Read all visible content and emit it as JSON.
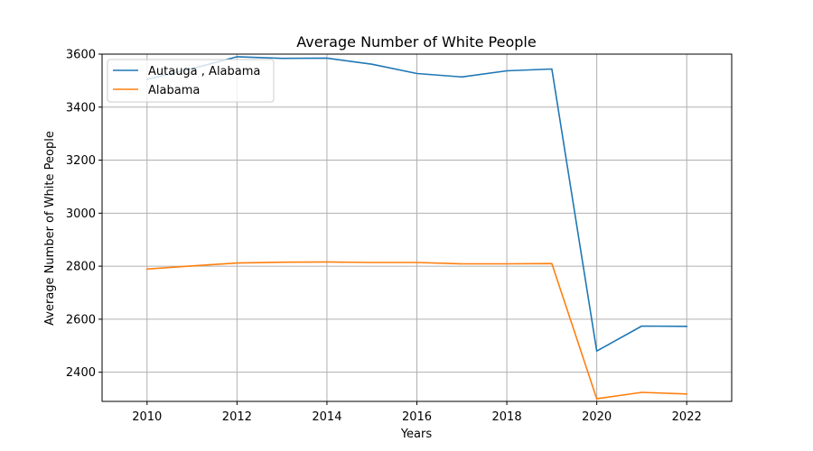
{
  "chart_data": {
    "type": "line",
    "title": "Average Number of White People",
    "xlabel": "Years",
    "ylabel": "Average Number of White People",
    "xlim": [
      2009,
      2023
    ],
    "ylim": [
      2290,
      3600
    ],
    "xticks": [
      2010,
      2012,
      2014,
      2016,
      2018,
      2020,
      2022
    ],
    "yticks": [
      2400,
      2600,
      2800,
      3000,
      3200,
      3400,
      3600
    ],
    "grid": true,
    "legend_position": "top-left",
    "x": [
      2010,
      2011,
      2012,
      2013,
      2014,
      2015,
      2016,
      2017,
      2018,
      2019,
      2020,
      2021,
      2022
    ],
    "series": [
      {
        "name": "Autauga , Alabama",
        "color": "#1f77b4",
        "values": [
          3505,
          3545,
          3590,
          3584,
          3585,
          3562,
          3527,
          3514,
          3537,
          3544,
          2480,
          2574,
          2573
        ]
      },
      {
        "name": "Alabama",
        "color": "#ff7f0e",
        "values": [
          2789,
          2801,
          2812,
          2815,
          2816,
          2814,
          2814,
          2809,
          2809,
          2810,
          2300,
          2324,
          2318
        ]
      }
    ]
  }
}
